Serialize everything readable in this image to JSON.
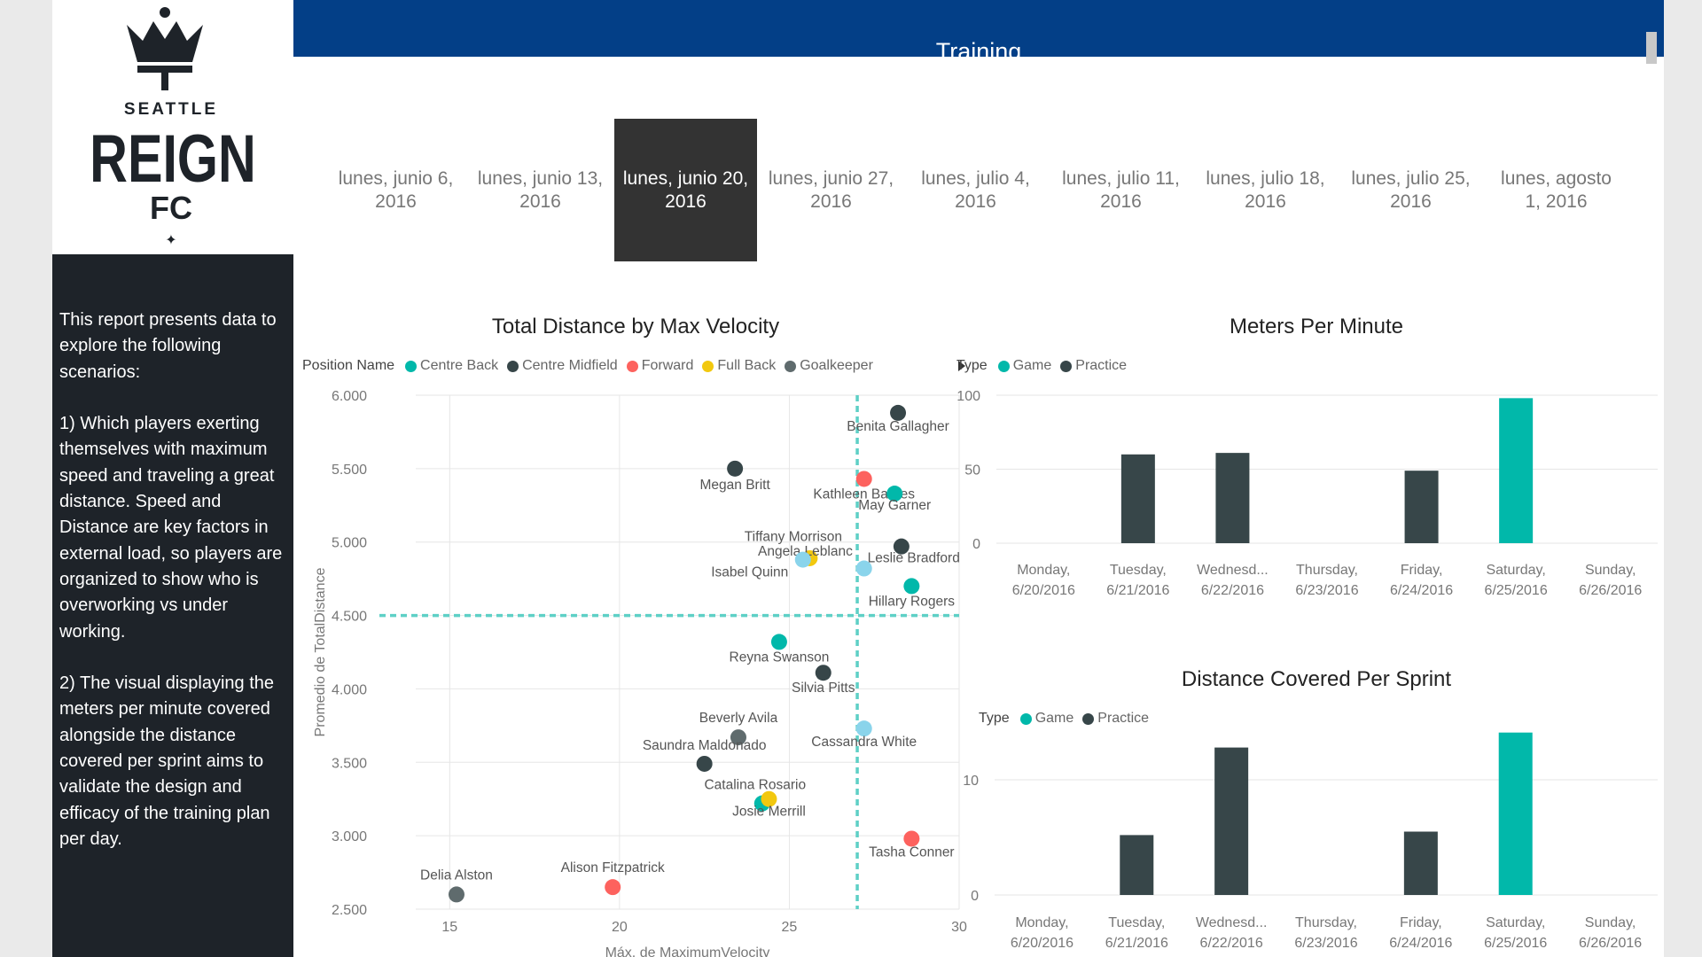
{
  "logo": {
    "line1": "SEATTLE",
    "line2": "REIGN",
    "line3": "FC",
    "mark": "✦"
  },
  "sidebar": {
    "description": "This report presents data to explore the following scenarios:\n\n1) Which players exerting themselves with maximum speed and traveling a great distance. Speed and Distance are key factors in external load, so players are organized to show who is overworking vs under working.\n\n2) The visual displaying the meters per minute covered alongside the distance covered per sprint aims to validate the design and efficacy of the training plan per day."
  },
  "header": {
    "title": "Training"
  },
  "week_slicer": {
    "selected": 2,
    "items": [
      {
        "label": "lunes, junio 6,\n2016"
      },
      {
        "label": "lunes, junio 13,\n2016"
      },
      {
        "label": "lunes, junio 20,\n2016"
      },
      {
        "label": "lunes, junio 27,\n2016"
      },
      {
        "label": "lunes, julio 4,\n2016"
      },
      {
        "label": "lunes, julio 11,\n2016"
      },
      {
        "label": "lunes, julio 18,\n2016"
      },
      {
        "label": "lunes, julio 25,\n2016"
      },
      {
        "label": "lunes, agosto\n1, 2016"
      }
    ]
  },
  "colors": {
    "Centre Back": "#01b8aa",
    "Centre Midfield": "#374649",
    "Forward": "#fd625e",
    "Full Back": "#f2c80f",
    "Goalkeeper": "#5f6b6d",
    "Game": "#01b8aa",
    "Practice": "#374649",
    "light_teal": "#8ad4eb",
    "header": "#033f87"
  },
  "chart_data": [
    {
      "type": "scatter",
      "title": "Total Distance by Max Velocity",
      "xlabel": "Máx. de MaximumVelocity",
      "ylabel": "Promedio de TotalDistance",
      "xlim": [
        14,
        30
      ],
      "ylim": [
        2500,
        6000
      ],
      "xticks": [
        15,
        20,
        25,
        30
      ],
      "yticks": [
        2500,
        3000,
        3500,
        4000,
        4500,
        5000,
        5500,
        6000
      ],
      "ytick_labels": [
        "2.500",
        "3.000",
        "3.500",
        "4.000",
        "4.500",
        "5.000",
        "5.500",
        "6.000"
      ],
      "legend_title": "Position Name",
      "legend": [
        "Centre Back",
        "Centre Midfield",
        "Forward",
        "Full Back",
        "Goalkeeper"
      ],
      "reference_lines": {
        "x": 27.0,
        "y": 4500
      },
      "points": [
        {
          "name": "Benita Gallagher",
          "x": 28.2,
          "y": 5880,
          "position": "Centre Midfield"
        },
        {
          "name": "Megan Britt",
          "x": 23.4,
          "y": 5500,
          "position": "Centre Midfield"
        },
        {
          "name": "Kathleen Barnes",
          "x": 27.2,
          "y": 5430,
          "position": "Forward"
        },
        {
          "name": "May Garner",
          "x": 28.1,
          "y": 5330,
          "position": "Centre Back"
        },
        {
          "name": "Tiffany Morrison",
          "x": 28.3,
          "y": 4970,
          "position": "Centre Midfield"
        },
        {
          "name": "Angela Leblanc",
          "x": 25.6,
          "y": 4890,
          "position": "Full Back"
        },
        {
          "name": "Isabel Quinn",
          "x": 25.4,
          "y": 4880,
          "position": "Centre Back",
          "color": "#8ad4eb"
        },
        {
          "name": "Leslie Bradford",
          "x": 27.2,
          "y": 4820,
          "position": "Centre Back",
          "color": "#8ad4eb"
        },
        {
          "name": "Hillary Rogers",
          "x": 28.6,
          "y": 4700,
          "position": "Centre Back"
        },
        {
          "name": "Reyna Swanson",
          "x": 24.7,
          "y": 4320,
          "position": "Centre Back"
        },
        {
          "name": "Silvia Pitts",
          "x": 26.0,
          "y": 4110,
          "position": "Centre Midfield"
        },
        {
          "name": "Beverly Avila",
          "x": 23.5,
          "y": 3670,
          "position": "Goalkeeper"
        },
        {
          "name": "Cassandra White",
          "x": 27.2,
          "y": 3730,
          "position": "Centre Back",
          "color": "#8ad4eb"
        },
        {
          "name": "Saundra Maldonado",
          "x": 22.5,
          "y": 3490,
          "position": "Centre Midfield"
        },
        {
          "name": "Catalina Rosario",
          "x": 24.2,
          "y": 3220,
          "position": "Centre Back"
        },
        {
          "name": "Josie Merrill",
          "x": 24.4,
          "y": 3250,
          "position": "Full Back"
        },
        {
          "name": "Tasha Conner",
          "x": 28.6,
          "y": 2980,
          "position": "Forward"
        },
        {
          "name": "Alison Fitzpatrick",
          "x": 19.8,
          "y": 2650,
          "position": "Forward"
        },
        {
          "name": "Delia Alston",
          "x": 15.2,
          "y": 2600,
          "position": "Goalkeeper"
        }
      ]
    },
    {
      "type": "bar",
      "title": "Meters Per Minute",
      "legend_title": "Type",
      "legend": [
        "Game",
        "Practice"
      ],
      "categories": [
        "Monday,\n6/20/2016",
        "Tuesday,\n6/21/2016",
        "Wednesd...\n6/22/2016",
        "Thursday,\n6/23/2016",
        "Friday,\n6/24/2016",
        "Saturday,\n6/25/2016",
        "Sunday,\n6/26/2016"
      ],
      "ylim": [
        0,
        100
      ],
      "yticks": [
        0,
        50,
        100
      ],
      "series": [
        {
          "name": "Practice",
          "values": [
            0,
            60,
            61,
            0,
            49,
            0,
            0
          ]
        },
        {
          "name": "Game",
          "values": [
            0,
            0,
            0,
            0,
            0,
            98,
            0
          ]
        }
      ]
    },
    {
      "type": "bar",
      "title": "Distance Covered Per Sprint",
      "legend_title": "Type",
      "legend": [
        "Game",
        "Practice"
      ],
      "categories": [
        "Monday,\n6/20/2016",
        "Tuesday,\n6/21/2016",
        "Wednesd...\n6/22/2016",
        "Thursday,\n6/23/2016",
        "Friday,\n6/24/2016",
        "Saturday,\n6/25/2016",
        "Sunday,\n6/26/2016"
      ],
      "ylim": [
        0,
        15
      ],
      "yticks": [
        0,
        10
      ],
      "series": [
        {
          "name": "Practice",
          "values": [
            0,
            5.2,
            12.8,
            0,
            5.5,
            0,
            0
          ]
        },
        {
          "name": "Game",
          "values": [
            0,
            0,
            0,
            0,
            0,
            14.1,
            0
          ]
        }
      ]
    }
  ]
}
